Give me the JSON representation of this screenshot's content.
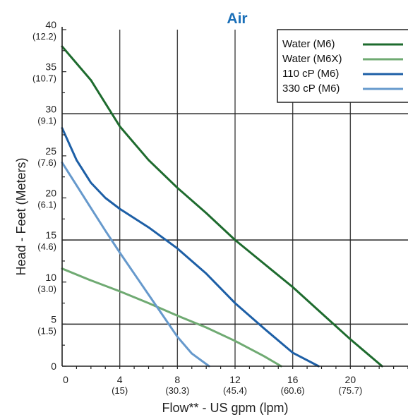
{
  "chart_data": {
    "type": "line",
    "title": "Air",
    "xlabel": "Flow** - US gpm (lpm)",
    "ylabel": "Head - Feet (Meters)",
    "xlim": [
      0,
      24
    ],
    "ylim": [
      0,
      40
    ],
    "x_ticks": [
      {
        "value": 0,
        "label": "0",
        "sub": ""
      },
      {
        "value": 4,
        "label": "4",
        "sub": "(15)"
      },
      {
        "value": 8,
        "label": "8",
        "sub": "(30.3)"
      },
      {
        "value": 12,
        "label": "12",
        "sub": "(45.4)"
      },
      {
        "value": 16,
        "label": "16",
        "sub": "(60.6)"
      },
      {
        "value": 20,
        "label": "20",
        "sub": "(75.7)"
      }
    ],
    "y_ticks": [
      {
        "value": 0,
        "label": "0",
        "sub": ""
      },
      {
        "value": 5,
        "label": "5",
        "sub": "(1.5)"
      },
      {
        "value": 10,
        "label": "10",
        "sub": "(3.0)"
      },
      {
        "value": 15,
        "label": "15",
        "sub": "(4.6)"
      },
      {
        "value": 20,
        "label": "20",
        "sub": "(6.1)"
      },
      {
        "value": 25,
        "label": "25",
        "sub": "(7.6)"
      },
      {
        "value": 30,
        "label": "30",
        "sub": "(9.1)"
      },
      {
        "value": 35,
        "label": "35",
        "sub": "(10.7)"
      },
      {
        "value": 40,
        "label": "40",
        "sub": "(12.2)"
      }
    ],
    "bold_gridlines_y": [
      5,
      15,
      30
    ],
    "grid": true,
    "legend_position": "top-right",
    "series": [
      {
        "name": "Water (M6)",
        "color": "#1e6b2e",
        "x": [
          0,
          2,
          4,
          6,
          8,
          10,
          12,
          14,
          16,
          18,
          20,
          22.2
        ],
        "y": [
          38,
          34,
          28.5,
          24.5,
          21.2,
          18.2,
          15,
          12.2,
          9.4,
          6.3,
          3.2,
          0
        ]
      },
      {
        "name": "Water (M6X)",
        "color": "#6faa72",
        "x": [
          0,
          2,
          4,
          6,
          8,
          10,
          12,
          14,
          15.2
        ],
        "y": [
          11.6,
          10.2,
          8.9,
          7.5,
          6,
          4.6,
          3,
          1.2,
          0
        ]
      },
      {
        "name": "110 cP (M6)",
        "color": "#1d5fa6",
        "x": [
          0,
          1,
          2,
          3,
          4,
          6,
          8,
          10,
          12,
          14,
          16,
          17.8
        ],
        "y": [
          28.3,
          24.5,
          21.8,
          20,
          18.7,
          16.5,
          14,
          11,
          7.5,
          4.5,
          1.6,
          0
        ]
      },
      {
        "name": "330 cP (M6)",
        "color": "#6699cc",
        "x": [
          0,
          1,
          2,
          3,
          4,
          5,
          6,
          7,
          8,
          9,
          10.2
        ],
        "y": [
          24.2,
          21.5,
          18.8,
          16.1,
          13.5,
          11,
          8.5,
          6,
          3.5,
          1.5,
          0
        ]
      }
    ]
  }
}
